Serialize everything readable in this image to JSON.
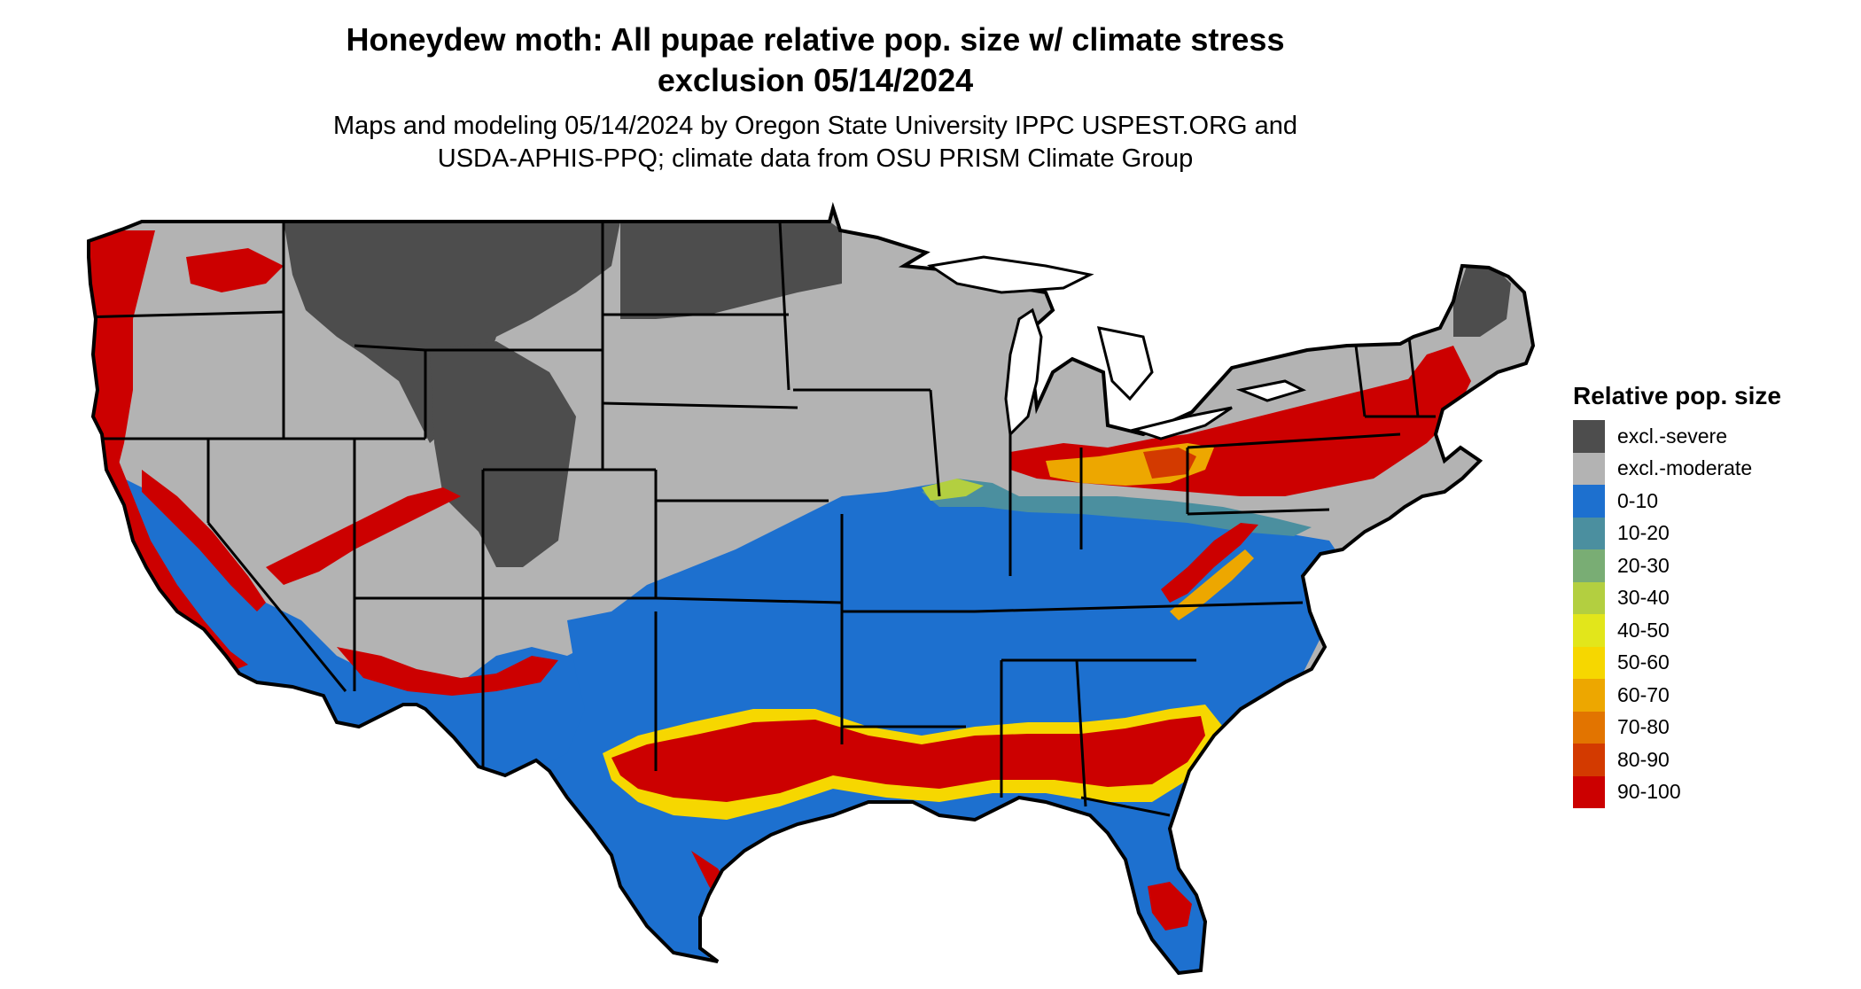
{
  "title_line1": "Honeydew moth: All pupae relative pop. size w/ climate stress",
  "title_line2": "exclusion 05/14/2024",
  "subtitle_line1": "Maps and modeling 05/14/2024 by Oregon State University IPPC USPEST.ORG and",
  "subtitle_line2": "USDA-APHIS-PPQ; climate data from OSU PRISM Climate Group",
  "legend": {
    "title": "Relative pop. size",
    "items": [
      {
        "label": "excl.-severe",
        "color": "#4d4d4d"
      },
      {
        "label": "excl.-moderate",
        "color": "#b3b3b3"
      },
      {
        "label": "0-10",
        "color": "#1d70cf"
      },
      {
        "label": "10-20",
        "color": "#4b8f9f"
      },
      {
        "label": "20-30",
        "color": "#79ad74"
      },
      {
        "label": "30-40",
        "color": "#b3cf40"
      },
      {
        "label": "40-50",
        "color": "#e2e61b"
      },
      {
        "label": "50-60",
        "color": "#f6d700"
      },
      {
        "label": "60-70",
        "color": "#eda700"
      },
      {
        "label": "70-80",
        "color": "#e27400"
      },
      {
        "label": "80-90",
        "color": "#d33a00"
      },
      {
        "label": "90-100",
        "color": "#cc0000"
      }
    ]
  }
}
